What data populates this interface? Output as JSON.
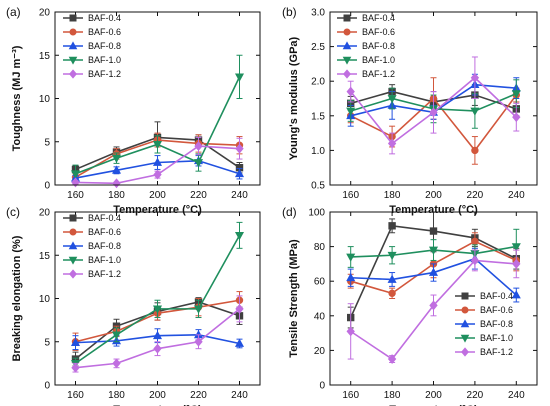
{
  "chart_data": [
    {
      "panel_label": "(a)",
      "type": "line",
      "xlabel": "Temperature (°C)",
      "ylabel": "Toughness (MJ m⁻³)",
      "x": [
        160,
        180,
        200,
        220,
        240
      ],
      "xlim": [
        150,
        250
      ],
      "ylim": [
        0,
        20
      ],
      "xticks": [
        160,
        180,
        200,
        220,
        240
      ],
      "yticks": [
        0,
        5,
        10,
        15,
        20
      ],
      "legend_position": "top-left",
      "series": [
        {
          "name": "BAF-0.4",
          "color": "#404040",
          "marker": "square",
          "values": [
            1.8,
            3.8,
            5.5,
            5.2,
            2.0
          ],
          "errors": [
            0.4,
            0.6,
            1.8,
            0.6,
            0.6
          ]
        },
        {
          "name": "BAF-0.6",
          "color": "#d2573c",
          "marker": "circle",
          "values": [
            0.9,
            3.6,
            5.2,
            4.8,
            4.6
          ],
          "errors": [
            0.4,
            0.6,
            0.8,
            1.0,
            1.0
          ]
        },
        {
          "name": "BAF-0.8",
          "color": "#2151e0",
          "marker": "triangle-up",
          "values": [
            0.8,
            1.7,
            2.6,
            2.8,
            1.3
          ],
          "errors": [
            0.3,
            0.4,
            0.8,
            0.6,
            0.6
          ]
        },
        {
          "name": "BAF-1.0",
          "color": "#1f8f5e",
          "marker": "triangle-down",
          "values": [
            1.3,
            3.1,
            4.7,
            2.6,
            12.5
          ],
          "errors": [
            1.0,
            0.6,
            1.0,
            1.0,
            2.5
          ]
        },
        {
          "name": "BAF-1.2",
          "color": "#c06ee0",
          "marker": "diamond",
          "values": [
            0.3,
            0.2,
            1.2,
            4.5,
            4.2
          ],
          "errors": [
            0.2,
            0.1,
            0.4,
            1.0,
            1.2
          ]
        }
      ]
    },
    {
      "panel_label": "(b)",
      "type": "line",
      "xlabel": "Temperature (°C)",
      "ylabel": "Young's modulus (GPa)",
      "x": [
        160,
        180,
        200,
        220,
        240
      ],
      "xlim": [
        150,
        250
      ],
      "ylim": [
        0.5,
        3.0
      ],
      "xticks": [
        160,
        180,
        200,
        220,
        240
      ],
      "yticks": [
        0.5,
        1.0,
        1.5,
        2.0,
        2.5,
        3.0
      ],
      "legend_position": "top-left",
      "series": [
        {
          "name": "BAF-0.4",
          "color": "#404040",
          "marker": "square",
          "values": [
            1.68,
            1.85,
            1.7,
            1.8,
            1.6
          ],
          "errors": [
            0.1,
            0.1,
            0.15,
            0.15,
            0.1
          ]
        },
        {
          "name": "BAF-0.6",
          "color": "#d2573c",
          "marker": "circle",
          "values": [
            1.5,
            1.2,
            1.75,
            1.0,
            1.8
          ],
          "errors": [
            0.1,
            0.15,
            0.3,
            0.2,
            0.1
          ]
        },
        {
          "name": "BAF-0.8",
          "color": "#2151e0",
          "marker": "triangle-up",
          "values": [
            1.5,
            1.65,
            1.55,
            1.95,
            1.9
          ],
          "errors": [
            0.15,
            0.2,
            0.1,
            0.15,
            0.15
          ]
        },
        {
          "name": "BAF-1.0",
          "color": "#1f8f5e",
          "marker": "triangle-down",
          "values": [
            1.57,
            1.75,
            1.6,
            1.57,
            1.82
          ],
          "errors": [
            0.15,
            0.15,
            0.2,
            0.25,
            0.2
          ]
        },
        {
          "name": "BAF-1.2",
          "color": "#c06ee0",
          "marker": "diamond",
          "values": [
            1.85,
            1.1,
            1.55,
            2.05,
            1.48
          ],
          "errors": [
            0.15,
            0.15,
            0.3,
            0.3,
            0.2
          ]
        }
      ]
    },
    {
      "panel_label": "(c)",
      "type": "line",
      "xlabel": "Temperature (°C)",
      "ylabel": "Breaking elongation (%)",
      "x": [
        160,
        180,
        200,
        220,
        240
      ],
      "xlim": [
        150,
        250
      ],
      "ylim": [
        0,
        20
      ],
      "xticks": [
        160,
        180,
        200,
        220,
        240
      ],
      "yticks": [
        0,
        5,
        10,
        15,
        20
      ],
      "legend_position": "top-left",
      "series": [
        {
          "name": "BAF-0.4",
          "color": "#404040",
          "marker": "square",
          "values": [
            3.0,
            6.8,
            8.5,
            9.6,
            8.0
          ],
          "errors": [
            0.8,
            0.8,
            1.0,
            0.5,
            1.0
          ]
        },
        {
          "name": "BAF-0.6",
          "color": "#d2573c",
          "marker": "circle",
          "values": [
            5.0,
            6.2,
            8.3,
            9.0,
            9.8
          ],
          "errors": [
            1.0,
            0.6,
            0.8,
            1.0,
            1.0
          ]
        },
        {
          "name": "BAF-0.8",
          "color": "#2151e0",
          "marker": "triangle-up",
          "values": [
            4.9,
            5.1,
            5.7,
            5.8,
            4.8
          ],
          "errors": [
            0.8,
            0.6,
            0.8,
            0.6,
            0.5
          ]
        },
        {
          "name": "BAF-1.0",
          "color": "#1f8f5e",
          "marker": "triangle-down",
          "values": [
            2.5,
            5.8,
            8.8,
            8.8,
            17.3
          ],
          "errors": [
            0.6,
            0.8,
            1.0,
            1.0,
            1.5
          ]
        },
        {
          "name": "BAF-1.2",
          "color": "#c06ee0",
          "marker": "diamond",
          "values": [
            2.0,
            2.5,
            4.2,
            5.0,
            8.8
          ],
          "errors": [
            0.5,
            0.5,
            0.8,
            0.8,
            1.5
          ]
        }
      ]
    },
    {
      "panel_label": "(d)",
      "type": "line",
      "xlabel": "Temperature (°C)",
      "ylabel": "Tensile Strength (MPa)",
      "x": [
        160,
        180,
        200,
        220,
        240
      ],
      "xlim": [
        150,
        250
      ],
      "ylim": [
        0,
        100
      ],
      "xticks": [
        160,
        180,
        200,
        220,
        240
      ],
      "yticks": [
        0,
        20,
        40,
        60,
        80,
        100
      ],
      "legend_position": "bottom-right",
      "series": [
        {
          "name": "BAF-0.4",
          "color": "#404040",
          "marker": "square",
          "values": [
            39,
            92,
            89,
            85,
            73
          ],
          "errors": [
            6,
            4,
            12,
            5,
            6
          ]
        },
        {
          "name": "BAF-0.6",
          "color": "#d2573c",
          "marker": "circle",
          "values": [
            60,
            53,
            70,
            83,
            72
          ],
          "errors": [
            4,
            3,
            8,
            5,
            6
          ]
        },
        {
          "name": "BAF-0.8",
          "color": "#2151e0",
          "marker": "triangle-up",
          "values": [
            62,
            61,
            65,
            73,
            52
          ],
          "errors": [
            5,
            4,
            5,
            6,
            4
          ]
        },
        {
          "name": "BAF-1.0",
          "color": "#1f8f5e",
          "marker": "triangle-down",
          "values": [
            74,
            75,
            78,
            76,
            80
          ],
          "errors": [
            6,
            5,
            6,
            5,
            10
          ]
        },
        {
          "name": "BAF-1.2",
          "color": "#c06ee0",
          "marker": "diamond",
          "values": [
            31,
            15,
            46,
            72,
            70
          ],
          "errors": [
            16,
            2,
            6,
            6,
            8
          ]
        }
      ]
    }
  ]
}
